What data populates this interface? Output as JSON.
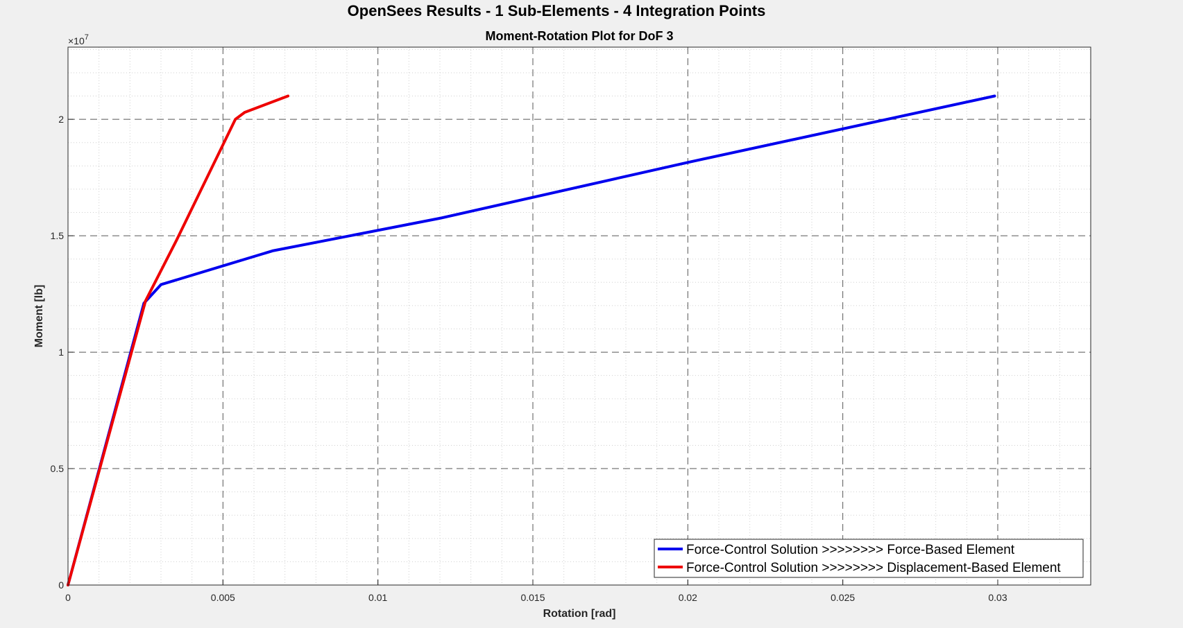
{
  "chart_data": {
    "type": "line",
    "suptitle": "OpenSees Results - 1 Sub-Elements - 4 Integration Points",
    "title": "Moment-Rotation Plot for DoF 3",
    "xlabel": "Rotation [rad]",
    "ylabel": "Moment [lb]",
    "xlim": [
      0,
      0.033
    ],
    "ylim": [
      0,
      23100000
    ],
    "xticks": [
      0,
      0.005,
      0.01,
      0.015,
      0.02,
      0.025,
      0.03
    ],
    "xtick_labels": [
      "0",
      "0.005",
      "0.01",
      "0.015",
      "0.02",
      "0.025",
      "0.03"
    ],
    "yticks": [
      0,
      5000000,
      10000000,
      15000000,
      20000000
    ],
    "ytick_labels": [
      "0",
      "0.5",
      "1",
      "1.5",
      "2"
    ],
    "y_exponent_base": "×10",
    "y_exponent_power": "7",
    "grid": "major dashed, minor dotted",
    "legend_location": "bottom-right",
    "series": [
      {
        "name": "Force-Control Solution >>>>>>>> Force-Based Element",
        "color": "#0000ee",
        "x": [
          0,
          0.00245,
          0.003,
          0.0066,
          0.012,
          0.02,
          0.0299
        ],
        "y": [
          0,
          12100000,
          12900000,
          14350000,
          15750000,
          18150000,
          21000000
        ]
      },
      {
        "name": "Force-Control Solution >>>>>>>> Displacement-Based Element",
        "color": "#ee0000",
        "x": [
          0,
          0.0025,
          0.0035,
          0.0054,
          0.0057,
          0.0071
        ],
        "y": [
          0,
          12200000,
          14800000,
          20000000,
          20300000,
          21000000
        ]
      }
    ]
  }
}
